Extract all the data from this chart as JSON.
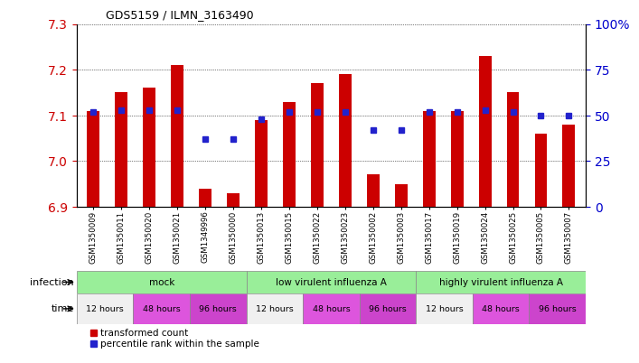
{
  "title": "GDS5159 / ILMN_3163490",
  "samples": [
    "GSM1350009",
    "GSM1350011",
    "GSM1350020",
    "GSM1350021",
    "GSM1349996",
    "GSM1350000",
    "GSM1350013",
    "GSM1350015",
    "GSM1350022",
    "GSM1350023",
    "GSM1350002",
    "GSM1350003",
    "GSM1350017",
    "GSM1350019",
    "GSM1350024",
    "GSM1350025",
    "GSM1350005",
    "GSM1350007"
  ],
  "bar_values": [
    7.11,
    7.15,
    7.16,
    7.21,
    6.94,
    6.93,
    7.09,
    7.13,
    7.17,
    7.19,
    6.97,
    6.95,
    7.11,
    7.11,
    7.23,
    7.15,
    7.06,
    7.08
  ],
  "blue_values": [
    52,
    53,
    53,
    53,
    37,
    37,
    48,
    52,
    52,
    52,
    42,
    42,
    52,
    52,
    53,
    52,
    50,
    50
  ],
  "ylim_left": [
    6.9,
    7.3
  ],
  "ylim_right": [
    0,
    100
  ],
  "yticks_left": [
    6.9,
    7.0,
    7.1,
    7.2,
    7.3
  ],
  "yticks_right": [
    0,
    25,
    50,
    75,
    100
  ],
  "bar_color": "#cc0000",
  "dot_color": "#2222cc",
  "infection_labels": [
    "mock",
    "low virulent influenza A",
    "highly virulent influenza A"
  ],
  "infection_color": "#99ee99",
  "time_labels": [
    "12 hours",
    "48 hours",
    "96 hours"
  ],
  "time_colors_cycle": [
    "#f0f0f0",
    "#dd55dd",
    "#cc44cc"
  ]
}
